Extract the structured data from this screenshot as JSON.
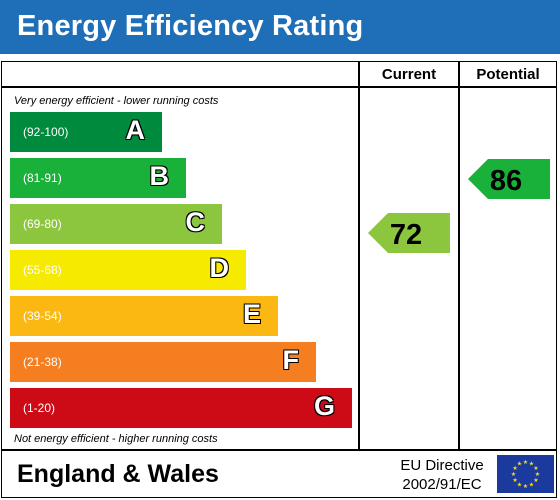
{
  "header": {
    "title": "Energy Efficiency Rating"
  },
  "columns": {
    "current": "Current",
    "potential": "Potential"
  },
  "notes": {
    "top": "Very energy efficient - lower running costs",
    "bottom": "Not energy efficient - higher running costs"
  },
  "footer": {
    "region": "England & Wales",
    "directive_line1": "EU Directive",
    "directive_line2": "2002/91/EC",
    "flag_icon": "eu-flag-icon"
  },
  "chart_data": {
    "type": "bar",
    "title": "Energy Efficiency Rating",
    "bands": [
      {
        "letter": "A",
        "range": "(92-100)",
        "color": "#008a3e"
      },
      {
        "letter": "B",
        "range": "(81-91)",
        "color": "#19b13a"
      },
      {
        "letter": "C",
        "range": "(69-80)",
        "color": "#8cc63e"
      },
      {
        "letter": "D",
        "range": "(55-68)",
        "color": "#f6ea00"
      },
      {
        "letter": "E",
        "range": "(39-54)",
        "color": "#fbb813"
      },
      {
        "letter": "F",
        "range": "(21-38)",
        "color": "#f57e20"
      },
      {
        "letter": "G",
        "range": "(1-20)",
        "color": "#cc0b16"
      }
    ],
    "current": {
      "value": 72,
      "band": "C",
      "color": "#8cc63e"
    },
    "potential": {
      "value": 86,
      "band": "B",
      "color": "#19b13a"
    }
  }
}
